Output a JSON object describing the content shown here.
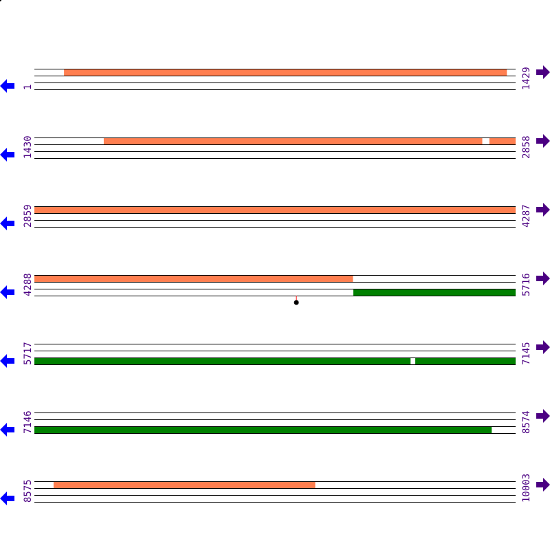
{
  "colors": {
    "forward_feature": "#ff7f50",
    "reverse_feature": "#008000",
    "label": "#4b0082",
    "left_arrow": "#0000ff",
    "right_arrow": "#4b0082",
    "marker": "#ff0000"
  },
  "left_arrow_icon": "arrow-left-icon",
  "right_arrow_icon": "arrow-right-icon",
  "rows": [
    {
      "start": 1,
      "end": 1429,
      "features": [
        {
          "strand": "forward",
          "from": 89,
          "to": 1403
        }
      ]
    },
    {
      "start": 1430,
      "end": 2858,
      "features": [
        {
          "strand": "forward",
          "from": 1636,
          "to": 2759
        },
        {
          "strand": "forward",
          "from": 2781,
          "to": 2858
        }
      ]
    },
    {
      "start": 2859,
      "end": 4287,
      "features": [
        {
          "strand": "forward",
          "from": 2859,
          "to": 4287
        }
      ]
    },
    {
      "start": 4288,
      "end": 5716,
      "features": [
        {
          "strand": "forward",
          "from": 4288,
          "to": 5233
        },
        {
          "strand": "reverse",
          "from": 5235,
          "to": 5716
        }
      ],
      "markers": [
        5066
      ]
    },
    {
      "start": 5717,
      "end": 7145,
      "features": [
        {
          "strand": "reverse",
          "from": 5717,
          "to": 6833
        },
        {
          "strand": "reverse",
          "from": 6848,
          "to": 7145
        }
      ]
    },
    {
      "start": 7146,
      "end": 8574,
      "features": [
        {
          "strand": "reverse",
          "from": 7146,
          "to": 8503
        }
      ]
    },
    {
      "start": 8575,
      "end": 10003,
      "features": [
        {
          "strand": "forward",
          "from": 8632,
          "to": 9408
        }
      ]
    }
  ]
}
